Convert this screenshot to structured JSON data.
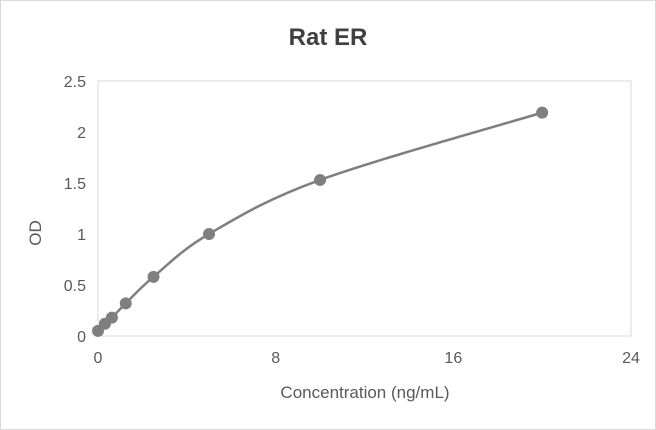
{
  "chart_data": {
    "type": "scatter",
    "title": "Rat ER",
    "xlabel": "Concentration (ng/mL)",
    "ylabel": "OD",
    "xlim": [
      0,
      24
    ],
    "ylim": [
      0,
      2.5
    ],
    "xticks": [
      "0",
      "8",
      "16",
      "24"
    ],
    "yticks": [
      "0",
      "0.5",
      "1",
      "1.5",
      "2",
      "2.5"
    ],
    "grid": false,
    "legend": "none",
    "smooth_line": true,
    "color": "#7f7f7f",
    "series": [
      {
        "x": [
          0,
          0.3125,
          0.625,
          1.25,
          2.5,
          5,
          10,
          20
        ],
        "y": [
          0.05,
          0.12,
          0.18,
          0.32,
          0.58,
          1.0,
          1.53,
          2.19
        ]
      }
    ]
  }
}
